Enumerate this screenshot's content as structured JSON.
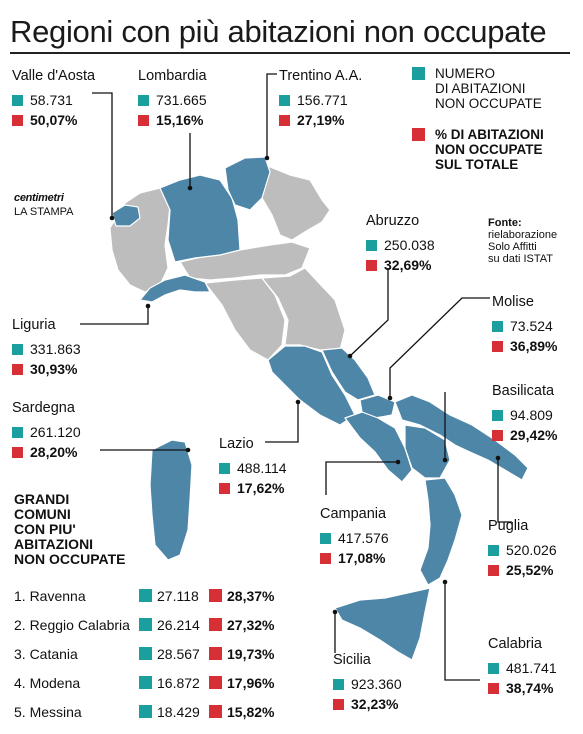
{
  "title": "Regioni con più abitazioni non occupate",
  "legend": {
    "count_label": "NUMERO\nDI ABITAZIONI\nNON OCCUPATE",
    "pct_label": "% DI ABITAZIONI\nNON OCCUPATE\nSUL TOTALE",
    "count_color": "#1a9e9e",
    "pct_color": "#d62f36"
  },
  "brand": {
    "logo": "centimetri",
    "publisher": "LA STAMPA"
  },
  "source": {
    "label": "Fonte:",
    "text": "rielaborazione\nSolo Affitti\nsu dati ISTAT"
  },
  "colors": {
    "highlight_region": "#4e86a8",
    "other_region": "#bdbdbd",
    "border": "#ffffff"
  },
  "regions": [
    {
      "name": "Valle d'Aosta",
      "count": "58.731",
      "pct": "50,07%"
    },
    {
      "name": "Lombardia",
      "count": "731.665",
      "pct": "15,16%"
    },
    {
      "name": "Trentino A.A.",
      "count": "156.771",
      "pct": "27,19%"
    },
    {
      "name": "Abruzzo",
      "count": "250.038",
      "pct": "32,69%"
    },
    {
      "name": "Liguria",
      "count": "331.863",
      "pct": "30,93%"
    },
    {
      "name": "Molise",
      "count": "73.524",
      "pct": "36,89%"
    },
    {
      "name": "Sardegna",
      "count": "261.120",
      "pct": "28,20%"
    },
    {
      "name": "Basilicata",
      "count": "94.809",
      "pct": "29,42%"
    },
    {
      "name": "Lazio",
      "count": "488.114",
      "pct": "17,62%"
    },
    {
      "name": "Campania",
      "count": "417.576",
      "pct": "17,08%"
    },
    {
      "name": "Puglia",
      "count": "520.026",
      "pct": "25,52%"
    },
    {
      "name": "Sicilia",
      "count": "923.360",
      "pct": "32,23%"
    },
    {
      "name": "Calabria",
      "count": "481.741",
      "pct": "38,74%"
    }
  ],
  "cities": {
    "title": "GRANDI\nCOMUNI\nCON PIU'\nABITAZIONI\nNON OCCUPATE",
    "items": [
      {
        "label": "1. Ravenna",
        "count": "27.118",
        "pct": "28,37%"
      },
      {
        "label": "2. Reggio Calabria",
        "count": "26.214",
        "pct": "27,32%"
      },
      {
        "label": "3. Catania",
        "count": "28.567",
        "pct": "19,73%"
      },
      {
        "label": "4. Modena",
        "count": "16.872",
        "pct": "17,96%"
      },
      {
        "label": "5. Messina",
        "count": "18.429",
        "pct": "15,82%"
      }
    ]
  }
}
